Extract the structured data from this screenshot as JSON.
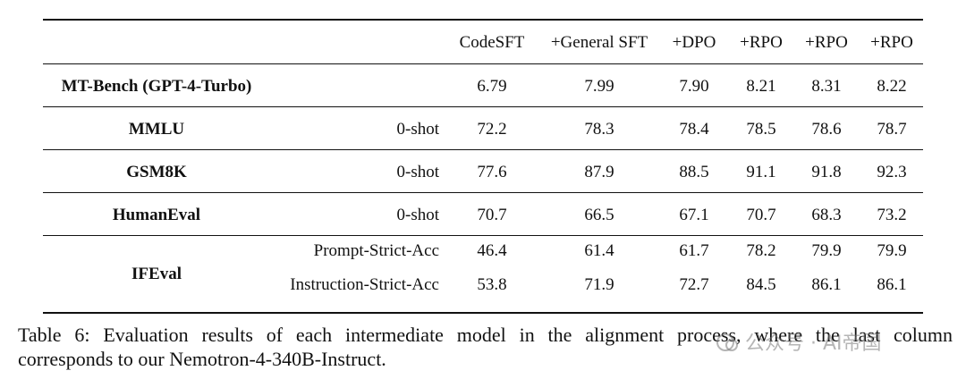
{
  "table": {
    "header": [
      "CodeSFT",
      "+General SFT",
      "+DPO",
      "+RPO",
      "+RPO",
      "+RPO"
    ],
    "rows": [
      {
        "benchmark": "MT-Bench (GPT-4-Turbo)",
        "subrows": [
          {
            "cells": [
              "6.79",
              "7.99",
              "7.90",
              "8.21",
              "8.31",
              "8.22"
            ]
          }
        ]
      },
      {
        "benchmark": "MMLU",
        "subrows": [
          {
            "setting": "0-shot",
            "cells": [
              "72.2",
              "78.3",
              "78.4",
              "78.5",
              "78.6",
              "78.7"
            ]
          }
        ]
      },
      {
        "benchmark": "GSM8K",
        "subrows": [
          {
            "setting": "0-shot",
            "cells": [
              "77.6",
              "87.9",
              "88.5",
              "91.1",
              "91.8",
              "92.3"
            ]
          }
        ]
      },
      {
        "benchmark": "HumanEval",
        "subrows": [
          {
            "setting": "0-shot",
            "cells": [
              "70.7",
              "66.5",
              "67.1",
              "70.7",
              "68.3",
              "73.2"
            ]
          }
        ]
      },
      {
        "benchmark": "IFEval",
        "subrows": [
          {
            "setting": "Prompt-Strict-Acc",
            "cells": [
              "46.4",
              "61.4",
              "61.7",
              "78.2",
              "79.9",
              "79.9"
            ]
          },
          {
            "setting": "Instruction-Strict-Acc",
            "cells": [
              "53.8",
              "71.9",
              "72.7",
              "84.5",
              "86.1",
              "86.1"
            ]
          }
        ]
      }
    ]
  },
  "caption": [
    "Table 6: Evaluation results of each intermediate model in the alignment process, where the last column",
    "corresponds to our Nemotron-4-340B-Instruct."
  ],
  "watermark": "公众号 · AI帝国"
}
